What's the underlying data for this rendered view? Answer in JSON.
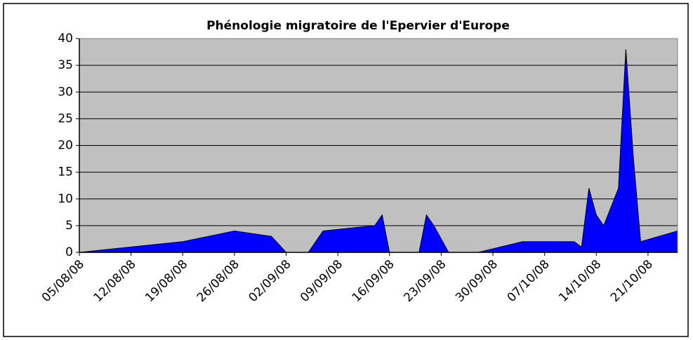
{
  "chart_data": {
    "type": "area",
    "title": "Phénologie migratoire de l'Epervier d'Europe",
    "x": [
      "05/08/08",
      "19/08/08",
      "26/08/08",
      "31/08/08",
      "02/09/08",
      "05/09/08",
      "07/09/08",
      "14/09/08",
      "15/09/08",
      "16/09/08",
      "20/09/08",
      "21/09/08",
      "22/09/08",
      "24/09/08",
      "28/09/08",
      "04/10/08",
      "11/10/08",
      "12/10/08",
      "13/10/08",
      "14/10/08",
      "15/10/08",
      "17/10/08",
      "18/10/08",
      "19/10/08",
      "20/10/08",
      "25/10/08"
    ],
    "values": [
      0,
      2,
      4,
      3,
      0,
      0,
      4,
      5,
      7,
      0,
      0,
      7,
      5,
      0,
      0,
      2,
      2,
      1,
      12,
      7,
      5,
      12,
      38,
      18,
      2,
      4
    ],
    "color": "#0000ff",
    "xlim": [
      "05/08/08",
      "25/10/08"
    ],
    "xticks": [
      "05/08/08",
      "12/08/08",
      "19/08/08",
      "26/08/08",
      "02/09/08",
      "09/09/08",
      "16/09/08",
      "23/09/08",
      "30/09/08",
      "07/10/08",
      "14/10/08",
      "21/10/08"
    ],
    "ylim": [
      0,
      40
    ],
    "yticks": [
      0,
      5,
      10,
      15,
      20,
      25,
      30,
      35,
      40
    ],
    "grid": true
  }
}
